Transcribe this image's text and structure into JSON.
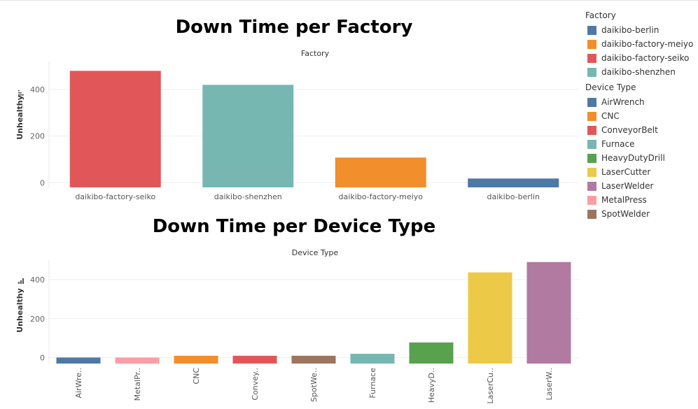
{
  "colors": {
    "daikibo-berlin": "#4e79a7",
    "daikibo-factory-meiyo": "#f28e2b",
    "daikibo-factory-seiko": "#e15759",
    "daikibo-shenzhen": "#76b7b2",
    "AirWrench": "#4e79a7",
    "CNC": "#f28e2b",
    "ConveyorBelt": "#e15759",
    "Furnace": "#76b7b2",
    "HeavyDutyDrill": "#59a14f",
    "LaserCutter": "#edc948",
    "LaserWelder": "#b07aa1",
    "MetalPress": "#ff9da7",
    "SpotWelder": "#9c755f"
  },
  "legend": {
    "factory_title": "Factory",
    "factory_items": [
      "daikibo-berlin",
      "daikibo-factory-meiyo",
      "daikibo-factory-seiko",
      "daikibo-shenzhen"
    ],
    "device_title": "Device Type",
    "device_items": [
      "AirWrench",
      "CNC",
      "ConveyorBelt",
      "Furnace",
      "HeavyDutyDrill",
      "LaserCutter",
      "LaserWelder",
      "MetalPress",
      "SpotWelder"
    ]
  },
  "chart_data": [
    {
      "type": "bar",
      "title": "Down Time per Factory",
      "header": "Factory",
      "ylabel": "Unhealthy",
      "ylim": [
        -20,
        520
      ],
      "yticks": [
        0,
        200,
        400
      ],
      "grid": true,
      "categories": [
        "daikibo-factory-seiko",
        "daikibo-shenzhen",
        "daikibo-factory-meiyo",
        "daikibo-berlin"
      ],
      "values": [
        480,
        420,
        108,
        18
      ],
      "legend": "right"
    },
    {
      "type": "bar",
      "title": "Down Time per Device Type",
      "header": "Device Type",
      "ylabel": "Unhealthy",
      "ylim": [
        -30,
        500
      ],
      "yticks": [
        0,
        200,
        400
      ],
      "grid": true,
      "categories": [
        "AirWrench",
        "MetalPress",
        "CNC",
        "ConveyorBelt",
        "SpotWelder",
        "Furnace",
        "HeavyDutyDrill",
        "LaserCutter",
        "LaserWelder"
      ],
      "tick_labels": [
        "AirWre..",
        "MetalPr..",
        "CNC",
        "Convey..",
        "SpotWe..",
        "Furnace",
        "HeavyD..",
        "LaserCu..",
        "LaserW.."
      ],
      "values": [
        1,
        1,
        10,
        10,
        10,
        20,
        78,
        437,
        490
      ],
      "legend": "right"
    }
  ]
}
